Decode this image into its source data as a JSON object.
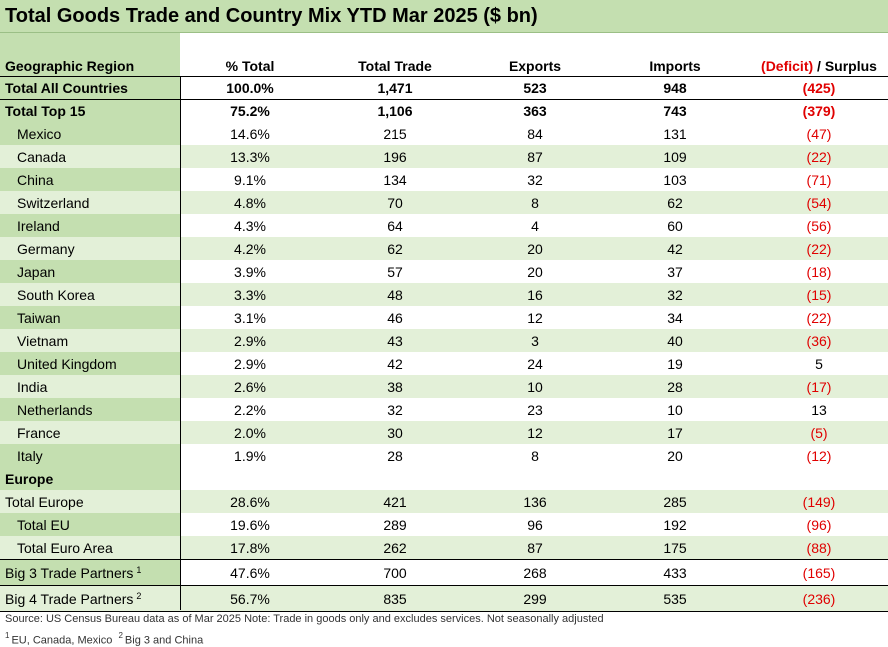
{
  "title": "Total Goods Trade and Country Mix YTD Mar 2025 ($ bn)",
  "columns": {
    "region": "Geographic Region",
    "pct": "% Total",
    "trade": "Total Trade",
    "exports": "Exports",
    "imports": "Imports",
    "deficit": "(Deficit)",
    "surplus": " / Surplus"
  },
  "rows": [
    {
      "name": "Total All Countries",
      "pct": "100.0%",
      "trade": "1,471",
      "exports": "523",
      "imports": "948",
      "balance": "(425)"
    },
    {
      "name": "Total Top 15",
      "pct": "75.2%",
      "trade": "1,106",
      "exports": "363",
      "imports": "743",
      "balance": "(379)"
    },
    {
      "name": "Mexico",
      "pct": "14.6%",
      "trade": "215",
      "exports": "84",
      "imports": "131",
      "balance": "(47)"
    },
    {
      "name": "Canada",
      "pct": "13.3%",
      "trade": "196",
      "exports": "87",
      "imports": "109",
      "balance": "(22)"
    },
    {
      "name": "China",
      "pct": "9.1%",
      "trade": "134",
      "exports": "32",
      "imports": "103",
      "balance": "(71)"
    },
    {
      "name": "Switzerland",
      "pct": "4.8%",
      "trade": "70",
      "exports": "8",
      "imports": "62",
      "balance": "(54)"
    },
    {
      "name": "Ireland",
      "pct": "4.3%",
      "trade": "64",
      "exports": "4",
      "imports": "60",
      "balance": "(56)"
    },
    {
      "name": "Germany",
      "pct": "4.2%",
      "trade": "62",
      "exports": "20",
      "imports": "42",
      "balance": "(22)"
    },
    {
      "name": "Japan",
      "pct": "3.9%",
      "trade": "57",
      "exports": "20",
      "imports": "37",
      "balance": "(18)"
    },
    {
      "name": "South Korea",
      "pct": "3.3%",
      "trade": "48",
      "exports": "16",
      "imports": "32",
      "balance": "(15)"
    },
    {
      "name": "Taiwan",
      "pct": "3.1%",
      "trade": "46",
      "exports": "12",
      "imports": "34",
      "balance": "(22)"
    },
    {
      "name": "Vietnam",
      "pct": "2.9%",
      "trade": "43",
      "exports": "3",
      "imports": "40",
      "balance": "(36)"
    },
    {
      "name": "United Kingdom",
      "pct": "2.9%",
      "trade": "42",
      "exports": "24",
      "imports": "19",
      "balance": "5"
    },
    {
      "name": "India",
      "pct": "2.6%",
      "trade": "38",
      "exports": "10",
      "imports": "28",
      "balance": "(17)"
    },
    {
      "name": "Netherlands",
      "pct": "2.2%",
      "trade": "32",
      "exports": "23",
      "imports": "10",
      "balance": "13"
    },
    {
      "name": "France",
      "pct": "2.0%",
      "trade": "30",
      "exports": "12",
      "imports": "17",
      "balance": "(5)"
    },
    {
      "name": "Italy",
      "pct": "1.9%",
      "trade": "28",
      "exports": "8",
      "imports": "20",
      "balance": "(12)"
    },
    {
      "name": "Europe",
      "pct": "",
      "trade": "",
      "exports": "",
      "imports": "",
      "balance": ""
    },
    {
      "name": "Total Europe",
      "pct": "28.6%",
      "trade": "421",
      "exports": "136",
      "imports": "285",
      "balance": "(149)"
    },
    {
      "name": "Total EU",
      "pct": "19.6%",
      "trade": "289",
      "exports": "96",
      "imports": "192",
      "balance": "(96)"
    },
    {
      "name": "Total Euro Area",
      "pct": "17.8%",
      "trade": "262",
      "exports": "87",
      "imports": "175",
      "balance": "(88)"
    },
    {
      "name": "Big 3 Trade Partners",
      "sup": "1",
      "pct": "47.6%",
      "trade": "700",
      "exports": "268",
      "imports": "433",
      "balance": "(165)"
    },
    {
      "name": "Big 4 Trade Partners",
      "sup": "2",
      "pct": "56.7%",
      "trade": "835",
      "exports": "299",
      "imports": "535",
      "balance": "(236)"
    }
  ],
  "source": "Source: US Census Bureau data as of Mar 2025 Note: Trade in goods only and excludes services. Not seasonally adjusted",
  "footnotes": [
    {
      "mark": "1",
      "text": "EU, Canada, Mexico"
    },
    {
      "mark": "2",
      "text": "Big 3 and China"
    }
  ],
  "colors": {
    "header_fill": "#c4dfb0",
    "band_fill": "#e3f0d8",
    "negative": "#e00000"
  }
}
